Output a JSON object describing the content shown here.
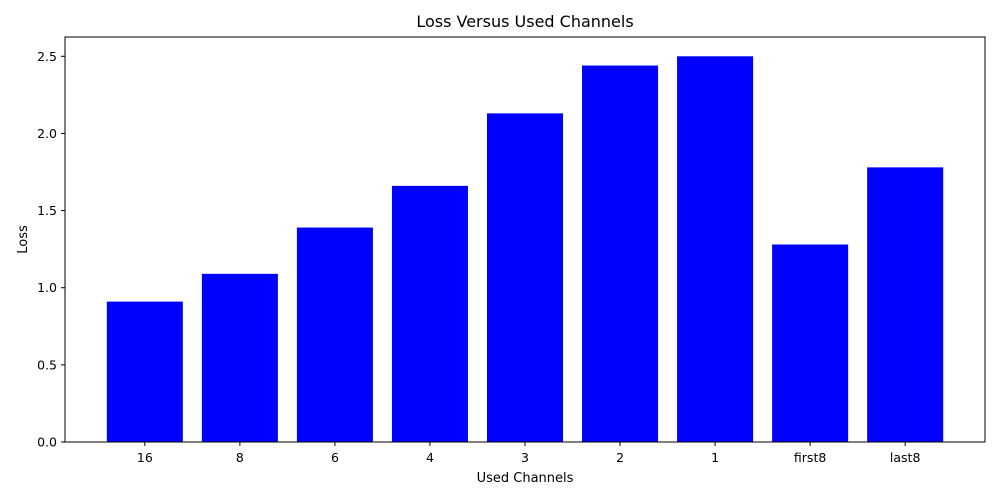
{
  "chart_data": {
    "type": "bar",
    "title": "Loss Versus Used Channels",
    "xlabel": "Used Channels",
    "ylabel": "Loss",
    "categories": [
      "16",
      "8",
      "6",
      "4",
      "3",
      "2",
      "1",
      "first8",
      "last8"
    ],
    "values": [
      0.91,
      1.09,
      1.39,
      1.66,
      2.13,
      2.44,
      2.5,
      1.28,
      1.78
    ],
    "ylim": [
      0,
      2.625
    ],
    "yticks": [
      "0.0",
      "0.5",
      "1.0",
      "1.5",
      "2.0",
      "2.5"
    ],
    "bar_color": "#0000ff",
    "grid": false
  }
}
